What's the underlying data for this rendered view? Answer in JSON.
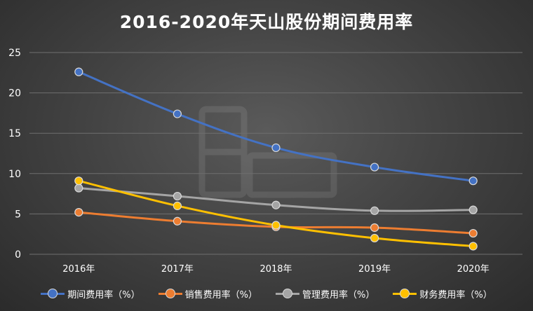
{
  "chart_data": {
    "type": "line",
    "title": "2016-2020年天山股份期间费用率",
    "xlabel": "",
    "ylabel": "",
    "categories": [
      "2016年",
      "2017年",
      "2018年",
      "2019年",
      "2020年"
    ],
    "ylim": [
      0,
      25
    ],
    "yticks": [
      0,
      5,
      10,
      15,
      20,
      25
    ],
    "grid": true,
    "legend": "bottom",
    "series": [
      {
        "name": "期间费用率（%）",
        "color": "#4472c4",
        "values": [
          22.6,
          17.4,
          13.2,
          10.8,
          9.1
        ]
      },
      {
        "name": "销售费用率（%）",
        "color": "#ed7d31",
        "values": [
          5.2,
          4.1,
          3.4,
          3.3,
          2.6
        ]
      },
      {
        "name": "管理费用率（%）",
        "color": "#a5a5a5",
        "values": [
          8.2,
          7.2,
          6.1,
          5.4,
          5.5
        ]
      },
      {
        "name": "财务费用率（%）",
        "color": "#ffc000",
        "values": [
          9.1,
          6.0,
          3.6,
          2.0,
          1.0
        ]
      }
    ]
  }
}
